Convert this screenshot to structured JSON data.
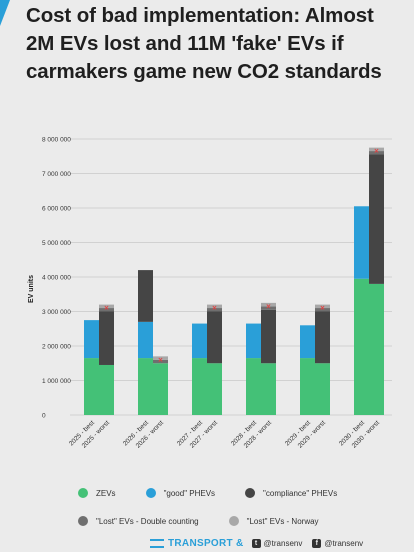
{
  "title": "Cost of bad implementation: Almost 2M EVs lost and 11M  'fake' EVs if carmakers game new CO2 standards",
  "colors": {
    "zev": "#44c177",
    "good_phev": "#2a9fd8",
    "compliance_phev": "#454545",
    "lost_double": "#6f6f6f",
    "lost_norway": "#a8a8a8",
    "lost_marker": "#e04444",
    "accent": "#2a9fd8"
  },
  "chart_data": {
    "type": "bar",
    "stacked": true,
    "ylabel": "EV units",
    "ylim": [
      0,
      8000000
    ],
    "yticks": [
      0,
      1000000,
      2000000,
      3000000,
      4000000,
      5000000,
      6000000,
      7000000,
      8000000
    ],
    "ytick_labels": [
      "0",
      "1 000 000",
      "2 000 000",
      "3 000 000",
      "4 000 000",
      "5 000 000",
      "6 000 000",
      "7 000 000",
      "8 000 000"
    ],
    "grid": true,
    "categories": [
      "2025 - best",
      "2025 - worst",
      "2026 - best",
      "2026 - worst",
      "2027 - best",
      "2027 - worst",
      "2028 - best",
      "2028 - worst",
      "2029 - best",
      "2029 - worst",
      "2030 - best",
      "2030 - worst"
    ],
    "series": [
      {
        "name": "ZEVs",
        "values": [
          1650000,
          1450000,
          1650000,
          1500000,
          1650000,
          1500000,
          1650000,
          1500000,
          1650000,
          1500000,
          3950000,
          3800000
        ]
      },
      {
        "name": "\"good\" PHEVs",
        "values": [
          1100000,
          0,
          1050000,
          0,
          1000000,
          0,
          1000000,
          0,
          950000,
          0,
          2100000,
          0
        ]
      },
      {
        "name": "\"compliance\" PHEVs",
        "values": [
          0,
          1550000,
          1500000,
          0,
          0,
          1500000,
          0,
          1550000,
          0,
          1500000,
          0,
          3750000
        ]
      },
      {
        "name": "\"Lost\" EVs - Double counting",
        "values": [
          0,
          100000,
          0,
          100000,
          0,
          100000,
          0,
          100000,
          0,
          100000,
          0,
          100000
        ]
      },
      {
        "name": "\"Lost\" EVs - Norway",
        "values": [
          0,
          100000,
          0,
          100000,
          0,
          100000,
          0,
          100000,
          0,
          100000,
          0,
          100000
        ]
      }
    ],
    "legend_position": "bottom"
  },
  "legend": {
    "row1": [
      {
        "label": "ZEVs",
        "color_key": "zev"
      },
      {
        "label": "\"good\" PHEVs",
        "color_key": "good_phev"
      },
      {
        "label": "\"compliance\" PHEVs",
        "color_key": "compliance_phev"
      }
    ],
    "row2": [
      {
        "label": "\"Lost\" EVs - Double counting",
        "color_key": "lost_double"
      },
      {
        "label": "\"Lost\" EVs - Norway",
        "color_key": "lost_norway"
      }
    ]
  },
  "footer": {
    "brand": "TRANSPORT &",
    "twitter": "@transenv",
    "facebook": "@transenv"
  }
}
